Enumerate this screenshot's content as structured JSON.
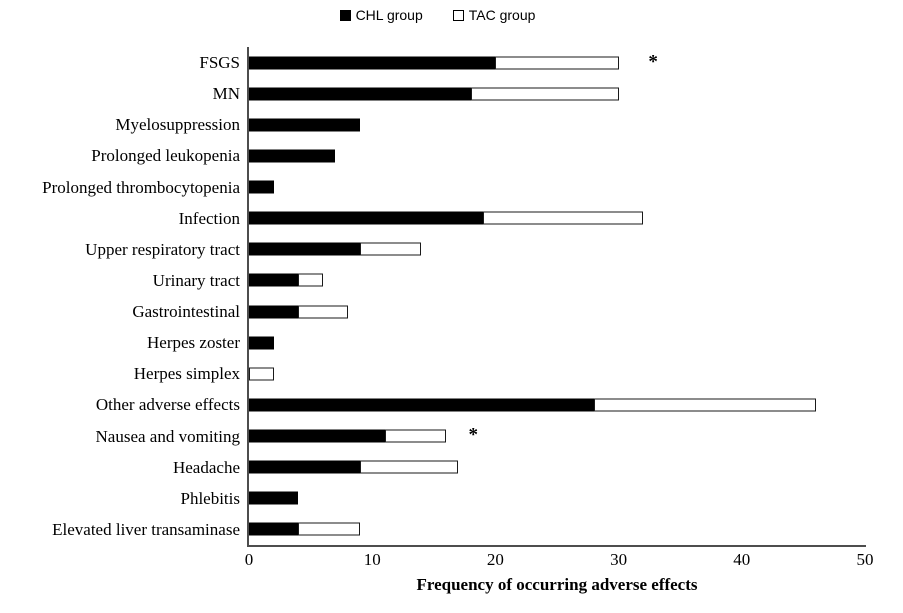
{
  "legend": {
    "items": [
      {
        "label": "CHL group",
        "swatch": "filled-black-square-icon"
      },
      {
        "label": "TAC group",
        "swatch": "outlined-white-square-icon"
      }
    ]
  },
  "chart_data": {
    "type": "bar",
    "orientation": "horizontal",
    "stacked": true,
    "categories": [
      "FSGS",
      "MN",
      "Myelosuppression",
      "Prolonged leukopenia",
      "Prolonged thrombocytopenia",
      "Infection",
      "Upper respiratory tract",
      "Urinary tract",
      "Gastrointestinal",
      "Herpes zoster",
      "Herpes simplex",
      "Other adverse effects",
      "Nausea and vomiting",
      "Headache",
      "Phlebitis",
      "Elevated liver transaminase"
    ],
    "series": [
      {
        "name": "CHL group",
        "color": "#000000",
        "values": [
          20,
          18,
          9,
          7,
          2,
          19,
          9,
          4,
          4,
          2,
          0,
          28,
          11,
          9,
          4,
          4
        ]
      },
      {
        "name": "TAC group",
        "color": "#ffffff",
        "values": [
          10,
          12,
          0,
          0,
          0,
          13,
          5,
          2,
          4,
          0,
          2,
          18,
          5,
          8,
          0,
          5
        ]
      }
    ],
    "annotations": [
      {
        "row": 0,
        "text": "*",
        "x": 32.8
      },
      {
        "row": 12,
        "text": "*",
        "x": 18.2
      }
    ],
    "xlabel": "Frequency of occurring adverse effects",
    "xticks": [
      0,
      10,
      20,
      30,
      40,
      50
    ],
    "xlim": [
      0,
      50
    ],
    "grid": false,
    "legend_position": "top-center"
  }
}
